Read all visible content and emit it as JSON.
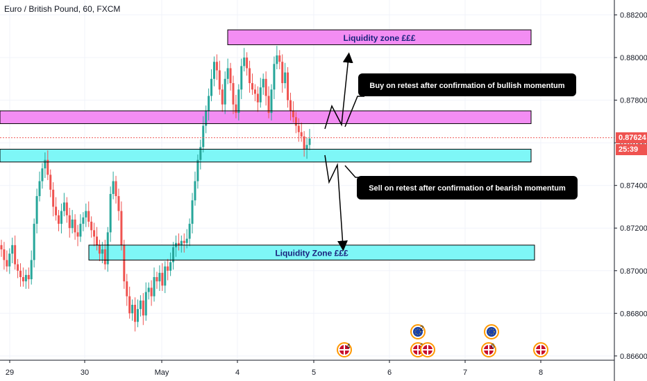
{
  "header": {
    "title": "Euro / British Pound, 60, FXCM"
  },
  "price_axis": {
    "current_price": "0.87624",
    "countdown": "25:39"
  },
  "colors": {
    "up": "#26a69a",
    "down": "#ef5350",
    "zone_magenta": "#f38df3",
    "zone_cyan": "#7ef7f7",
    "callout_bg": "#000000"
  },
  "annotations": {
    "zone_top_label": "Liquidity zone £££",
    "zone_bottom_label": "Liquidity Zone £££",
    "buy_note": "Buy on retest after confirmation of bullish momentum",
    "sell_note": "Sell on retest after confirmation of bearish momentum"
  },
  "events": [
    {
      "icon": "uk-flag-icon",
      "badge": "4"
    },
    {
      "icon": "eu-flag-icon",
      "badge": "2"
    },
    {
      "icon": "uk-flag-icon",
      "badge": "2"
    },
    {
      "icon": "uk-flag-icon",
      "badge": ""
    },
    {
      "icon": "eu-flag-icon",
      "badge": ""
    },
    {
      "icon": "uk-flag-icon",
      "badge": "6"
    },
    {
      "icon": "uk-flag-icon",
      "badge": ""
    }
  ],
  "chart_data": {
    "type": "candlestick",
    "title": "Euro / British Pound, 60, FXCM",
    "x_tick_labels": [
      "29",
      "30",
      "May",
      "4",
      "5",
      "6",
      "7",
      "8"
    ],
    "y_tick_labels": [
      "0.88200",
      "0.88000",
      "0.87800",
      "0.87600",
      "0.87400",
      "0.87200",
      "0.87000",
      "0.86800",
      "0.86600"
    ],
    "y_ticks": [
      0.882,
      0.88,
      0.878,
      0.876,
      0.874,
      0.872,
      0.87,
      0.868,
      0.866
    ],
    "ylim": [
      0.8658,
      0.8827
    ],
    "current_price": 0.87624,
    "zones": [
      {
        "name": "upper-liquidity",
        "low": 0.8806,
        "high": 0.8813
      },
      {
        "name": "resistance",
        "low": 0.8769,
        "high": 0.8775
      },
      {
        "name": "support",
        "low": 0.8751,
        "high": 0.8757
      },
      {
        "name": "lower-liquidity",
        "low": 0.8705,
        "high": 0.8712
      }
    ],
    "closes": [
      0.871,
      0.8705,
      0.8702,
      0.8708,
      0.8712,
      0.8703,
      0.87,
      0.8697,
      0.8695,
      0.8698,
      0.8696,
      0.8705,
      0.8722,
      0.8735,
      0.8742,
      0.8748,
      0.8752,
      0.8745,
      0.8738,
      0.873,
      0.8726,
      0.8722,
      0.8728,
      0.8732,
      0.8726,
      0.872,
      0.8724,
      0.8718,
      0.8716,
      0.8722,
      0.8725,
      0.8728,
      0.8723,
      0.8719,
      0.8716,
      0.8712,
      0.8708,
      0.871,
      0.8703,
      0.8718,
      0.8736,
      0.8742,
      0.8735,
      0.8728,
      0.8712,
      0.8695,
      0.8688,
      0.868,
      0.8684,
      0.8676,
      0.8682,
      0.8686,
      0.8679,
      0.869,
      0.8692,
      0.8688,
      0.8697,
      0.8695,
      0.8699,
      0.8693,
      0.8702,
      0.87,
      0.8704,
      0.8711,
      0.8713,
      0.8712,
      0.8714,
      0.8713,
      0.8715,
      0.8722,
      0.8733,
      0.8742,
      0.8752,
      0.8758,
      0.8768,
      0.8775,
      0.8782,
      0.879,
      0.8798,
      0.8794,
      0.8785,
      0.8778,
      0.879,
      0.8795,
      0.8788,
      0.8778,
      0.8774,
      0.8785,
      0.8796,
      0.88,
      0.8795,
      0.8788,
      0.8785,
      0.8783,
      0.8779,
      0.8786,
      0.879,
      0.8782,
      0.8774,
      0.8785,
      0.8797,
      0.8801,
      0.8798,
      0.8788,
      0.8793,
      0.878,
      0.8775,
      0.8772,
      0.8768,
      0.8765,
      0.8763,
      0.8757,
      0.8759,
      0.8762
    ]
  }
}
